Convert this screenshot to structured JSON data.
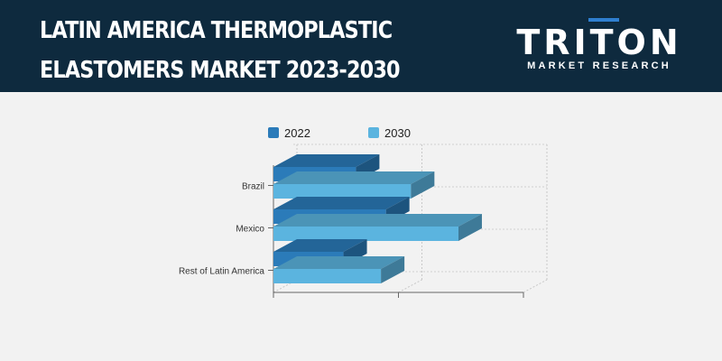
{
  "header": {
    "title_line1": "LATIN AMERICA THERMOPLASTIC",
    "title_line2": "ELASTOMERS MARKET 2023-2030",
    "logo_main": "TRITON",
    "logo_sub": "MARKET RESEARCH"
  },
  "colors": {
    "header_bg": "#0e2a3e",
    "series_2022": "#2b7bb9",
    "series_2030": "#5bb4df",
    "logo_accent": "#2f7fd0"
  },
  "chart_data": {
    "type": "bar",
    "orientation": "horizontal",
    "three_d": true,
    "categories": [
      "Brazil",
      "Mexico",
      "Rest of Latin America"
    ],
    "series": [
      {
        "name": "2022",
        "values": [
          0.33,
          0.45,
          0.28
        ]
      },
      {
        "name": "2030",
        "values": [
          0.55,
          0.74,
          0.43
        ]
      }
    ],
    "xlim": [
      0,
      1
    ],
    "grid": true,
    "legend": "top",
    "title": "",
    "xlabel": "",
    "ylabel": ""
  }
}
